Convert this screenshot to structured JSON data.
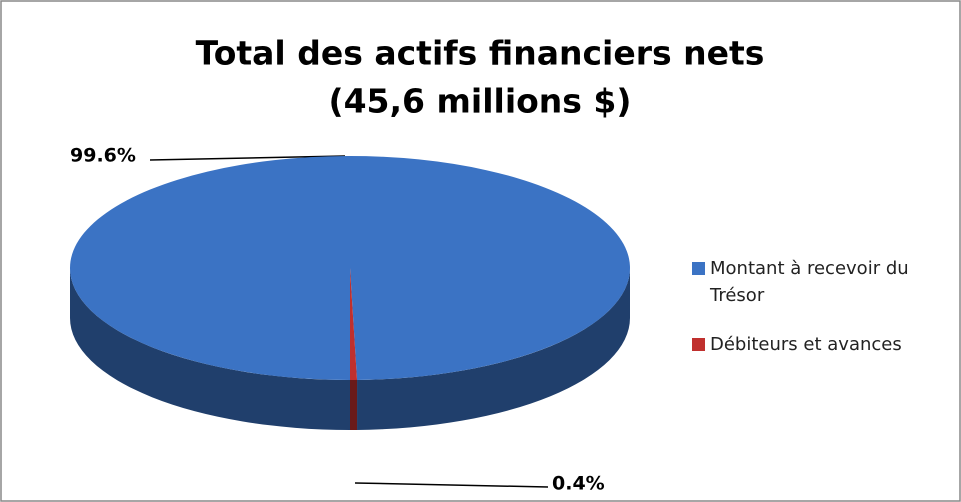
{
  "chart_data": {
    "type": "pie",
    "title": "Total des actifs financiers nets",
    "subtitle": "(45,6 millions $)",
    "categories": [
      "Montant à recevoir du Trésor",
      "Débiteurs et avances"
    ],
    "values": [
      99.6,
      0.4
    ],
    "value_labels": [
      "99.6%",
      "0.4%"
    ],
    "colors": [
      "#3b73c4",
      "#c0302e"
    ],
    "legend": "right"
  }
}
